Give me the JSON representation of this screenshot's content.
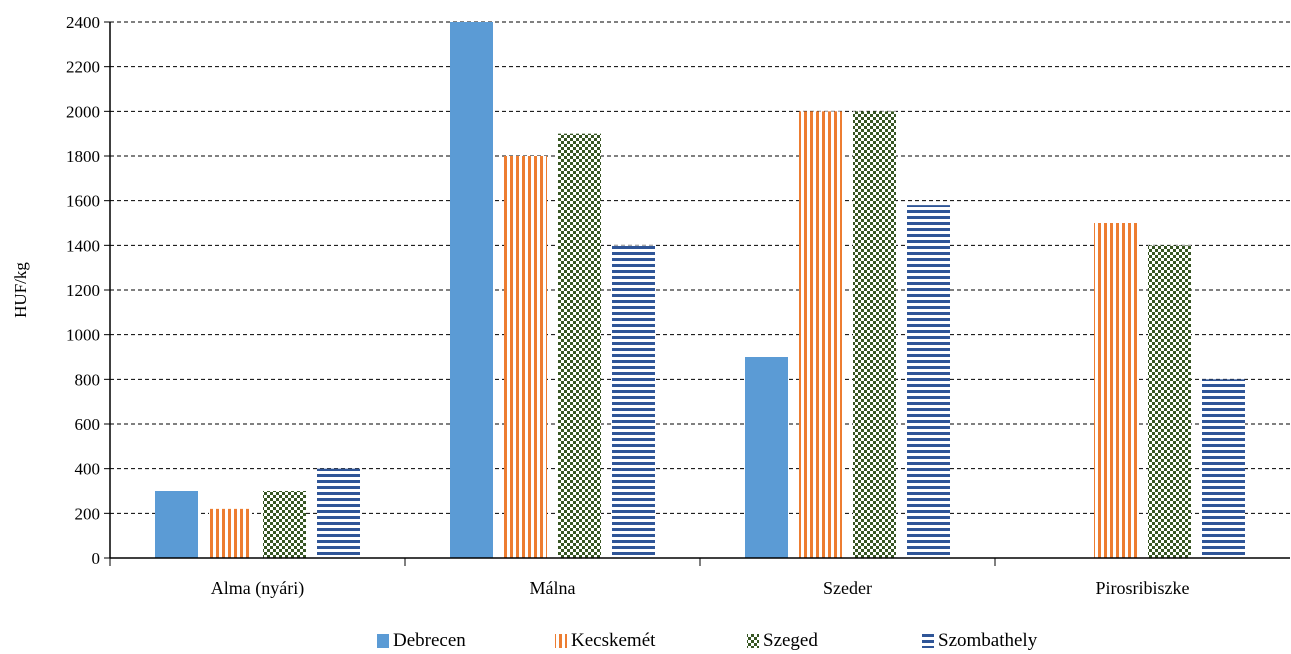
{
  "chart_data": {
    "type": "bar",
    "categories": [
      "Alma (nyári)",
      "Málna",
      "Szeder",
      "Pirosribiszke"
    ],
    "series": [
      {
        "name": "Debrecen",
        "values": [
          300,
          2400,
          900,
          0
        ],
        "color": "#5b9bd5",
        "pattern": "solid"
      },
      {
        "name": "Kecskemét",
        "values": [
          220,
          1800,
          2000,
          1500
        ],
        "color": "#ed7d31",
        "pattern": "vertical-stripes"
      },
      {
        "name": "Szeged",
        "values": [
          300,
          1900,
          2000,
          1400
        ],
        "color": "#375623",
        "pattern": "checker"
      },
      {
        "name": "Szombathely",
        "values": [
          400,
          1400,
          1580,
          800
        ],
        "color": "#2f5597",
        "pattern": "horizontal-stripes"
      }
    ],
    "ylabel": "HUF/kg",
    "ylim": [
      0,
      2400
    ],
    "yticks": [
      "0",
      "200",
      "400",
      "600",
      "800",
      "1000",
      "1200",
      "1400",
      "1600",
      "1800",
      "2000",
      "2200",
      "2400"
    ],
    "grid": "dashed horizontal",
    "legend_position": "bottom"
  }
}
